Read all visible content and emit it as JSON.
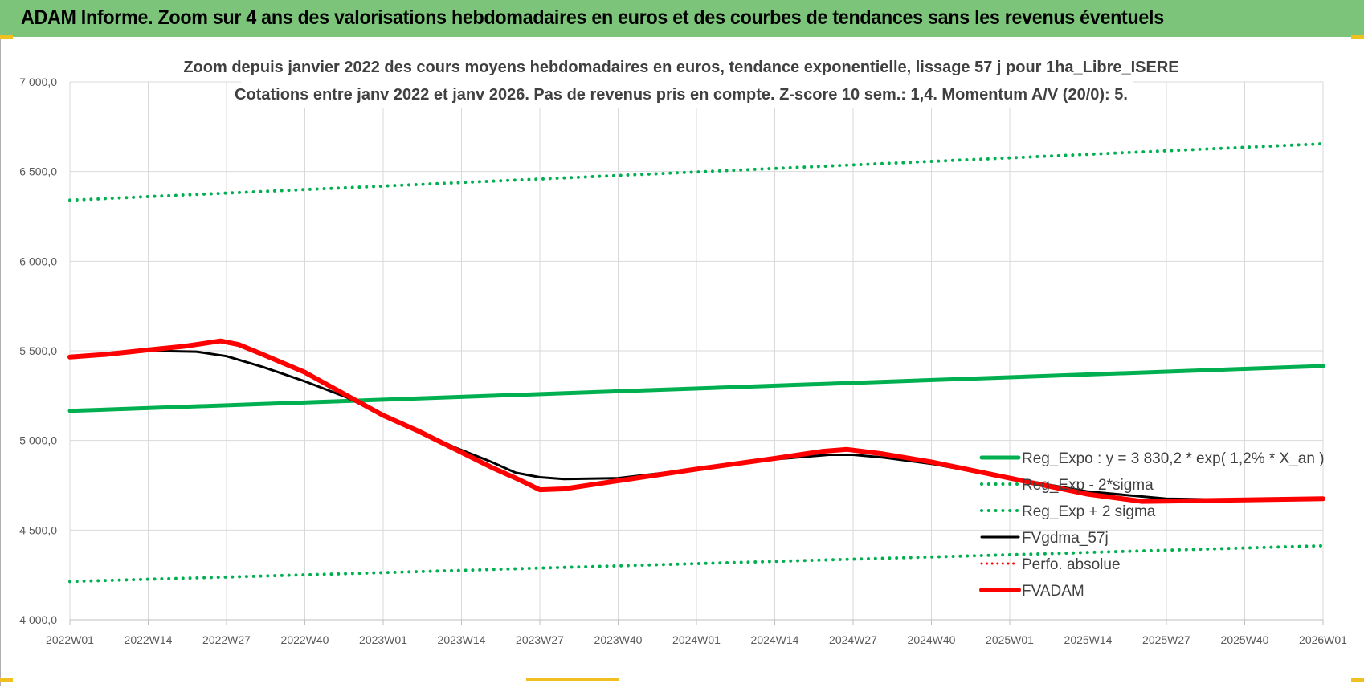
{
  "banner": {
    "title": "ADAM Informe. Zoom sur 4 ans des valorisations hebdomadaires en euros et des courbes de tendances sans les revenus éventuels"
  },
  "chart_data": {
    "type": "line",
    "title": "Zoom depuis janvier 2022 des cours moyens hebdomadaires en euros, tendance exponentielle, lissage 57 j pour 1ha_Libre_ISERE",
    "subtitle": "Cotations entre janv 2022 et janv 2026. Pas de revenus pris en compte. Z-score 10 sem.: 1,4. Momentum A/V (20/0): 5.",
    "xlabel": "",
    "ylabel": "",
    "ylim": [
      4000,
      7000
    ],
    "yticks": [
      "4 000,0",
      "4 500,0",
      "5 000,0",
      "5 500,0",
      "6 000,0",
      "6 500,0",
      "7 000,0"
    ],
    "yticks_values": [
      4000,
      4500,
      5000,
      5500,
      6000,
      6500,
      7000
    ],
    "x_tick_labels": [
      "2022W01",
      "2022W14",
      "2022W27",
      "2022W40",
      "2023W01",
      "2023W14",
      "2023W27",
      "2023W40",
      "2024W01",
      "2024W14",
      "2024W27",
      "2024W40",
      "2025W01",
      "2025W14",
      "2025W27",
      "2025W40",
      "2026W01"
    ],
    "grid": true,
    "legend_position": "right",
    "series": [
      {
        "name": "Reg_Expo : y = 3 830,2 * exp( 1,2% *  X_an )",
        "color": "#00b050",
        "style": "solid",
        "width": 5,
        "points": [
          [
            0,
            5165
          ],
          [
            208,
            5415
          ]
        ]
      },
      {
        "name": "Reg_Exp - 2*sigma",
        "color": "#00b050",
        "style": "dotted",
        "width": 4,
        "points": [
          [
            0,
            4213
          ],
          [
            208,
            4413
          ]
        ]
      },
      {
        "name": "Reg_Exp + 2 sigma",
        "color": "#00b050",
        "style": "dotted",
        "width": 4,
        "points": [
          [
            0,
            6340
          ],
          [
            208,
            6655
          ]
        ]
      },
      {
        "name": "FVgdma_57j",
        "color": "#000000",
        "style": "solid",
        "width": 3,
        "points": [
          [
            0,
            5465
          ],
          [
            6,
            5480
          ],
          [
            13,
            5500
          ],
          [
            21,
            5495
          ],
          [
            26,
            5470
          ],
          [
            32,
            5410
          ],
          [
            39,
            5330
          ],
          [
            46,
            5240
          ],
          [
            52,
            5140
          ],
          [
            58,
            5050
          ],
          [
            64,
            4960
          ],
          [
            70,
            4880
          ],
          [
            74,
            4820
          ],
          [
            78,
            4795
          ],
          [
            82,
            4785
          ],
          [
            91,
            4790
          ],
          [
            104,
            4840
          ],
          [
            117,
            4895
          ],
          [
            126,
            4920
          ],
          [
            130,
            4920
          ],
          [
            135,
            4905
          ],
          [
            143,
            4870
          ],
          [
            156,
            4790
          ],
          [
            169,
            4715
          ],
          [
            182,
            4675
          ],
          [
            195,
            4668
          ],
          [
            208,
            4675
          ]
        ]
      },
      {
        "name": "Perfo. absolue",
        "color": "#ff0000",
        "style": "dotted",
        "width": 3,
        "points": []
      },
      {
        "name": "FVADAM",
        "color": "#ff0000",
        "style": "solid",
        "width": 6,
        "points": [
          [
            0,
            5465
          ],
          [
            6,
            5480
          ],
          [
            13,
            5505
          ],
          [
            19,
            5525
          ],
          [
            25,
            5555
          ],
          [
            28,
            5535
          ],
          [
            32,
            5480
          ],
          [
            39,
            5380
          ],
          [
            46,
            5250
          ],
          [
            52,
            5140
          ],
          [
            58,
            5050
          ],
          [
            64,
            4950
          ],
          [
            70,
            4850
          ],
          [
            74,
            4790
          ],
          [
            78,
            4725
          ],
          [
            82,
            4730
          ],
          [
            91,
            4775
          ],
          [
            104,
            4840
          ],
          [
            117,
            4900
          ],
          [
            125,
            4940
          ],
          [
            129,
            4950
          ],
          [
            135,
            4925
          ],
          [
            143,
            4880
          ],
          [
            156,
            4790
          ],
          [
            169,
            4700
          ],
          [
            178,
            4660
          ],
          [
            182,
            4662
          ],
          [
            195,
            4668
          ],
          [
            208,
            4675
          ]
        ]
      }
    ]
  }
}
